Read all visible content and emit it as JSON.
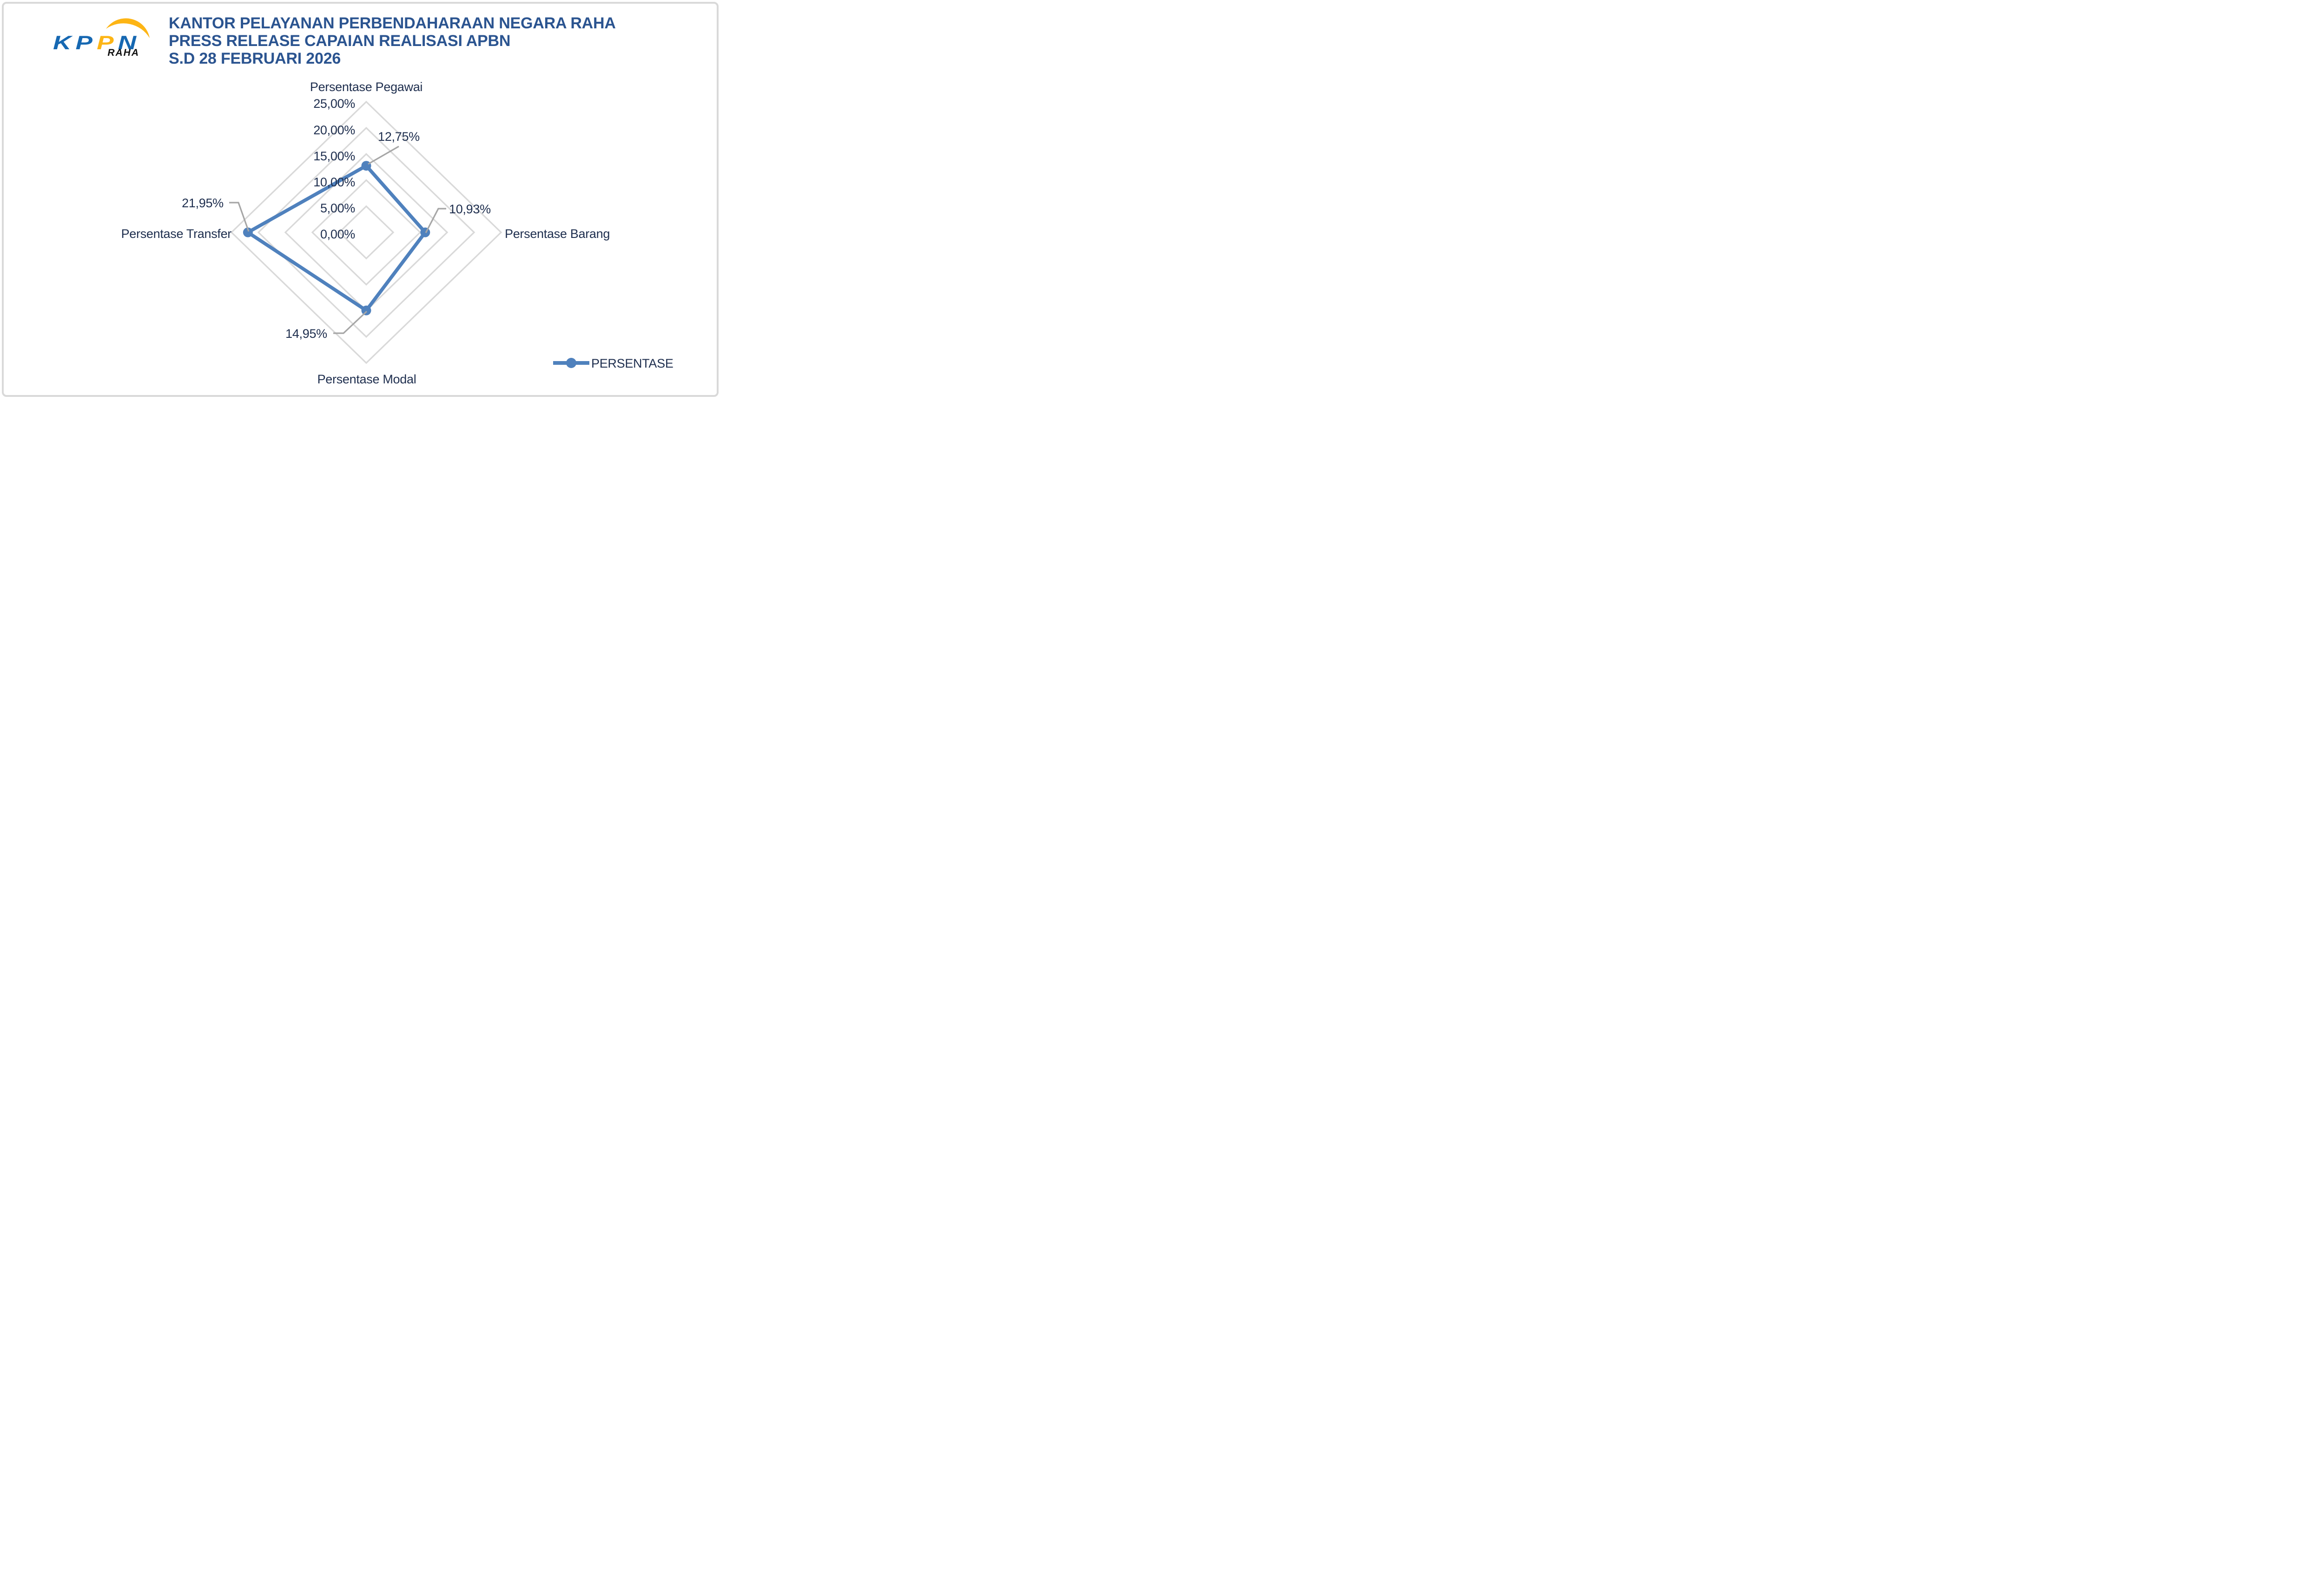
{
  "logo": {
    "letters": [
      {
        "ch": "K",
        "color": "blue"
      },
      {
        "ch": "P",
        "color": "blue"
      },
      {
        "ch": "P",
        "color": "yellow"
      },
      {
        "ch": "N",
        "color": "blue"
      }
    ],
    "subtext": "RAHA",
    "blue": "#1668B2",
    "yellow": "#FDB515"
  },
  "title": {
    "line1": "KANTOR PELAYANAN PERBENDAHARAAN NEGARA RAHA",
    "line2": "PRESS RELEASE CAPAIAN REALISASI APBN",
    "line3": "S.D 28 FEBRUARI 2026",
    "color": "#2B5490"
  },
  "legend": {
    "label": "PERSENTASE"
  },
  "chart_data": {
    "type": "radar",
    "categories": [
      "Persentase Pegawai",
      "Persentase Barang",
      "Persentase Modal",
      "Persentase Transfer"
    ],
    "series": [
      {
        "name": "PERSENTASE",
        "values": [
          12.75,
          10.93,
          14.95,
          21.95
        ]
      }
    ],
    "value_labels": [
      "12,75%",
      "10,93%",
      "14,95%",
      "21,95%"
    ],
    "axis_ticks": [
      "0,00%",
      "5,00%",
      "10,00%",
      "15,00%",
      "20,00%",
      "25,00%"
    ],
    "axis_range": [
      0,
      25
    ],
    "tick_step": 5,
    "grid": true,
    "grid_shape": "diamond",
    "fill": "none",
    "legend_position": "bottom-right",
    "colors": {
      "series": "#4F81BD",
      "grid": "#D9D9D9",
      "leader": "#A6A6A6",
      "text": "#1E2E4E"
    }
  }
}
